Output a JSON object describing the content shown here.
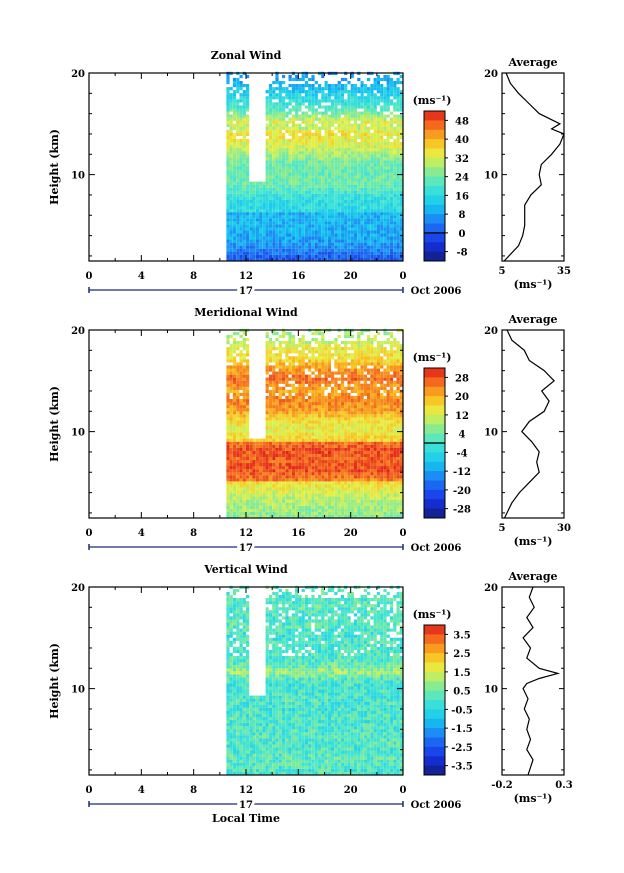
{
  "figure": {
    "date_label": "Oct 2006",
    "day_label": "17",
    "xlabel": "Local Time",
    "unit_label": "(ms⁻¹)"
  },
  "chart_data": [
    {
      "type": "heatmap",
      "title": "Zonal Wind",
      "ylabel": "Height (km)",
      "xlabel": "Local Time",
      "x_range": [
        0,
        24
      ],
      "y_range": [
        1.5,
        20
      ],
      "x_ticks": [
        "0",
        "4",
        "8",
        "12",
        "16",
        "20",
        "0"
      ],
      "y_ticks": [
        "10",
        "20"
      ],
      "data_start_hour": 10.5,
      "colorbar": {
        "unit": "(ms⁻¹)",
        "ticks": [
          "48",
          "40",
          "32",
          "24",
          "16",
          "8",
          "0",
          "-8"
        ],
        "min": -12,
        "max": 52,
        "zero_line": 0
      },
      "profile": {
        "title": "Average",
        "ylabel": "Height (km)",
        "xlabel": "(ms⁻¹)",
        "x_ticks": [
          "5",
          "35"
        ],
        "x_range": [
          5,
          35
        ],
        "heights": [
          1.5,
          3,
          4,
          5,
          6,
          7,
          8,
          9,
          10,
          11,
          12,
          13,
          14,
          14.5,
          15,
          16,
          17,
          18,
          19,
          20
        ],
        "values": [
          6,
          13,
          15,
          16,
          16,
          16,
          19,
          24,
          23,
          24,
          29,
          33,
          35,
          29,
          33,
          23,
          18,
          13,
          9,
          7
        ]
      }
    },
    {
      "type": "heatmap",
      "title": "Meridional Wind",
      "ylabel": "Height (km)",
      "xlabel": "Local Time",
      "x_range": [
        0,
        24
      ],
      "y_range": [
        1.5,
        20
      ],
      "x_ticks": [
        "0",
        "4",
        "8",
        "12",
        "16",
        "20",
        "0"
      ],
      "y_ticks": [
        "10",
        "20"
      ],
      "data_start_hour": 10.5,
      "colorbar": {
        "unit": "(ms⁻¹)",
        "ticks": [
          "28",
          "20",
          "12",
          "4",
          "-4",
          "-12",
          "-20",
          "-28"
        ],
        "min": -32,
        "max": 32,
        "zero_line": 0
      },
      "profile": {
        "title": "Average",
        "ylabel": "Height (km)",
        "xlabel": "(ms⁻¹)",
        "x_ticks": [
          "5",
          "30"
        ],
        "x_range": [
          5,
          30
        ],
        "heights": [
          1.5,
          3,
          4,
          5,
          6,
          7,
          8,
          9,
          10,
          11,
          12,
          13,
          14,
          15,
          16,
          17,
          18,
          19,
          20
        ],
        "values": [
          6,
          9,
          12,
          16,
          20,
          19,
          20,
          17,
          13,
          16,
          22,
          24,
          21,
          26,
          22,
          16,
          14,
          9,
          7
        ]
      }
    },
    {
      "type": "heatmap",
      "title": "Vertical Wind",
      "ylabel": "Height (km)",
      "xlabel": "Local Time",
      "x_range": [
        0,
        24
      ],
      "y_range": [
        1.5,
        20
      ],
      "x_ticks": [
        "0",
        "4",
        "8",
        "12",
        "16",
        "20",
        "0"
      ],
      "y_ticks": [
        "10",
        "20"
      ],
      "data_start_hour": 10.5,
      "colorbar": {
        "unit": "(ms⁻¹)",
        "ticks": [
          "3.5",
          "2.5",
          "1.5",
          "0.5",
          "-0.5",
          "-1.5",
          "-2.5",
          "-3.5"
        ],
        "min": -4,
        "max": 4
      },
      "profile": {
        "title": "Average",
        "ylabel": "Height (km)",
        "xlabel": "(ms⁻¹)",
        "x_ticks": [
          "-0.2",
          "0.3"
        ],
        "x_range": [
          -0.2,
          0.3
        ],
        "heights": [
          1.5,
          3,
          4,
          5,
          6,
          7,
          8,
          9,
          10,
          10.5,
          11,
          11.5,
          12,
          13,
          14,
          15,
          16,
          17,
          18,
          19,
          20
        ],
        "values": [
          0.01,
          0.05,
          0.0,
          0.03,
          0.0,
          0.02,
          -0.02,
          0.01,
          -0.03,
          0.0,
          0.1,
          0.25,
          0.1,
          0.0,
          0.03,
          -0.03,
          0.05,
          0.0,
          0.06,
          0.02,
          0.05
        ]
      }
    }
  ]
}
